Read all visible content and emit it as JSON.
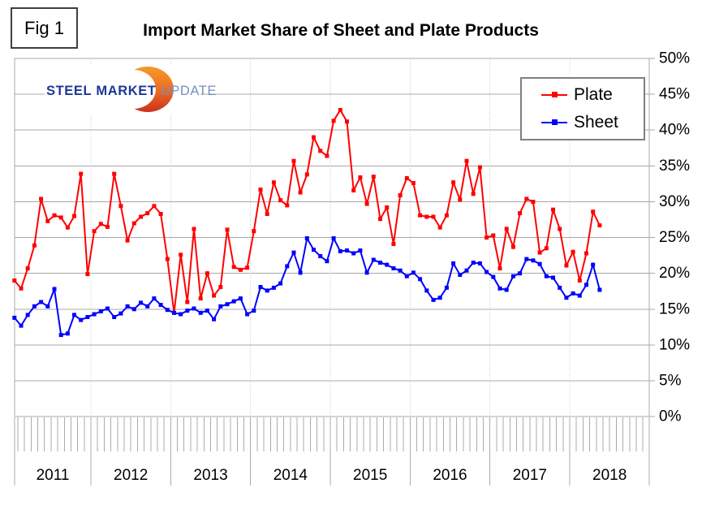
{
  "figure_label": "Fig 1",
  "title": "Import Market Share of Sheet and Plate Products",
  "logo": {
    "word1": "STEEL",
    "word2": "MARKET",
    "word3": "UPDATE",
    "swoosh_top_color": "#F59B28",
    "swoosh_bottom_color": "#CB3220",
    "text_color": "#1d3894",
    "update_color": "#7590bf"
  },
  "legend": {
    "items": [
      {
        "label": "Plate",
        "color": "#FF0000"
      },
      {
        "label": "Sheet",
        "color": "#0000FF"
      }
    ]
  },
  "chart_data": {
    "type": "line",
    "title": "Import Market Share of Sheet and Plate Products",
    "x_unit": "month",
    "x_start": "2011-01",
    "x_end": "2018-05",
    "year_labels": [
      "2011",
      "2012",
      "2013",
      "2014",
      "2015",
      "2016",
      "2017",
      "2018"
    ],
    "ylim": [
      0,
      50
    ],
    "y_tick_step": 5,
    "y_tick_labels": [
      "0%",
      "5%",
      "10%",
      "15%",
      "20%",
      "25%",
      "30%",
      "35%",
      "40%",
      "45%",
      "50%"
    ],
    "grid": {
      "horizontal": "solid gray each 5%",
      "vertical": "dotted gray at each January",
      "x_minor_ticks": "monthly below axis"
    },
    "legend_position": "top-right",
    "grid_color": "#A8A8A8",
    "dotted_line_color": "#C8C8C8",
    "series": [
      {
        "name": "Plate",
        "color": "#FF0000",
        "values": [
          19.0,
          17.9,
          20.7,
          23.9,
          30.4,
          27.3,
          28.1,
          27.8,
          26.4,
          28.0,
          33.9,
          19.9,
          25.9,
          26.9,
          26.5,
          33.9,
          29.4,
          24.6,
          27.0,
          27.9,
          28.4,
          29.4,
          28.3,
          22.0,
          14.5,
          22.6,
          16.0,
          26.2,
          16.5,
          20.0,
          16.9,
          18.1,
          26.1,
          20.9,
          20.5,
          20.8,
          25.9,
          31.7,
          28.3,
          32.7,
          30.2,
          29.5,
          35.7,
          31.3,
          33.8,
          39.0,
          37.1,
          36.4,
          41.3,
          42.8,
          41.2,
          31.6,
          33.4,
          29.7,
          33.5,
          27.6,
          29.2,
          24.1,
          30.9,
          33.3,
          32.6,
          28.1,
          27.9,
          27.9,
          26.4,
          28.1,
          32.7,
          30.3,
          35.7,
          31.1,
          34.8,
          25.0,
          25.3,
          20.7,
          26.2,
          23.7,
          28.4,
          30.4,
          30.0,
          22.9,
          23.5,
          28.9,
          26.2,
          21.1,
          23.0,
          19.0,
          22.8,
          28.6,
          26.7
        ]
      },
      {
        "name": "Sheet",
        "color": "#0000FF",
        "values": [
          13.8,
          12.7,
          14.2,
          15.4,
          16.0,
          15.4,
          17.8,
          11.4,
          11.6,
          14.2,
          13.5,
          13.9,
          14.3,
          14.7,
          15.1,
          13.9,
          14.4,
          15.4,
          15.0,
          15.9,
          15.4,
          16.5,
          15.6,
          14.9,
          14.5,
          14.3,
          14.8,
          15.1,
          14.5,
          14.8,
          13.6,
          15.4,
          15.7,
          16.1,
          16.5,
          14.3,
          14.8,
          18.1,
          17.6,
          18.0,
          18.6,
          21.0,
          22.9,
          20.1,
          24.9,
          23.3,
          22.4,
          21.7,
          24.9,
          23.1,
          23.2,
          22.8,
          23.2,
          20.1,
          21.9,
          21.5,
          21.2,
          20.7,
          20.4,
          19.6,
          20.1,
          19.2,
          17.6,
          16.3,
          16.6,
          18.0,
          21.4,
          19.8,
          20.4,
          21.5,
          21.4,
          20.2,
          19.5,
          17.9,
          17.7,
          19.6,
          20.0,
          22.0,
          21.8,
          21.3,
          19.6,
          19.4,
          18.0,
          16.6,
          17.2,
          16.9,
          18.4,
          21.2,
          17.7
        ]
      }
    ]
  }
}
